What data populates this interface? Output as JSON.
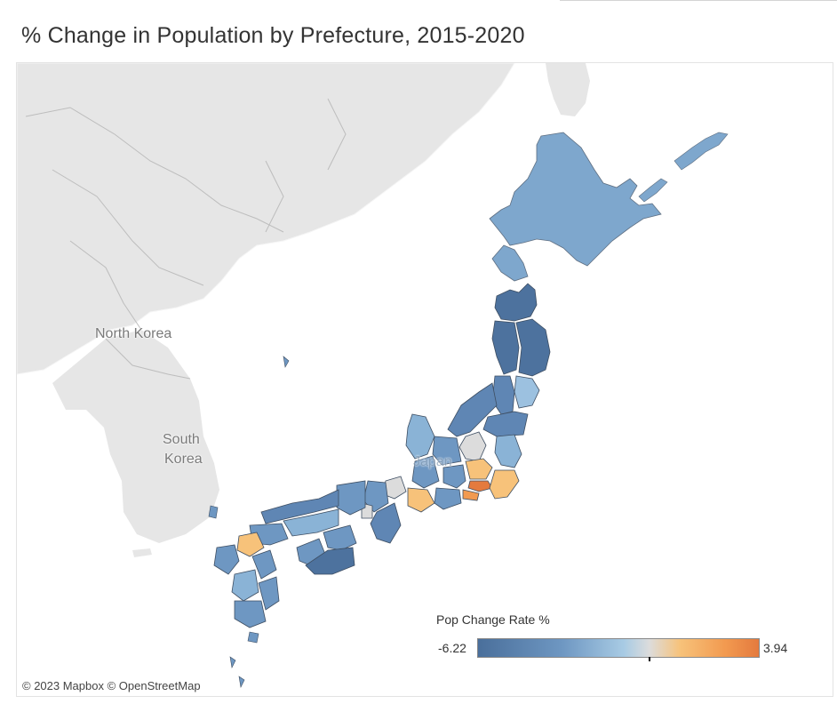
{
  "title": "% Change in Population by Prefecture, 2015-2020",
  "labels": {
    "north_korea": "North Korea",
    "south_korea_line1": "South",
    "south_korea_line2": "Korea",
    "japan": "Japan"
  },
  "attribution": "© 2023 Mapbox  © OpenStreetMap",
  "legend": {
    "title": "Pop Change Rate %",
    "min": "-6.22",
    "max": "3.94"
  },
  "colors": {
    "land_background": "#e6e6e6",
    "sea": "#ffffff",
    "strong_decline": "#4a6f9b",
    "decline": "#6e97c2",
    "slight_decline": "#a8cbe4",
    "neutral": "#dcdcdc",
    "growth": "#f7c27a",
    "strong_growth": "#e47a3e"
  }
}
